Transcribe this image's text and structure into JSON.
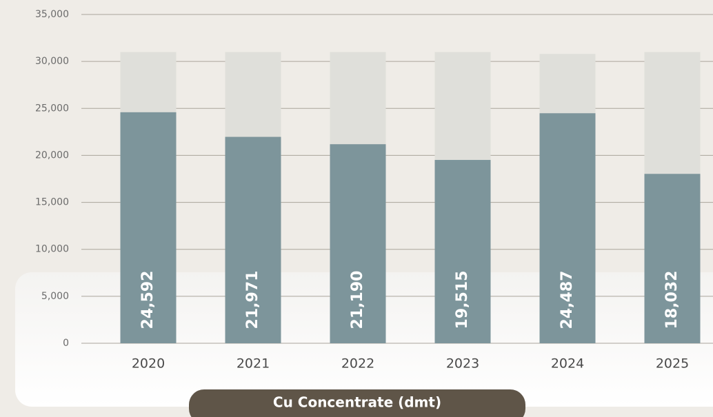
{
  "chart_data": {
    "type": "bar",
    "title": "Cu Concentrate (dmt)",
    "categories": [
      "2020",
      "2021",
      "2022",
      "2023",
      "2024",
      "2025"
    ],
    "values": [
      24592,
      21971,
      21190,
      19515,
      24487,
      18032
    ],
    "value_labels": [
      "24,592",
      "21,971",
      "21,190",
      "19,515",
      "24,487",
      "18,032"
    ],
    "color": "#7d959b",
    "background_values": [
      31000,
      31000,
      31000,
      31000,
      30800,
      31000
    ],
    "background_color": "#dfdfda",
    "ylim": [
      0,
      35000
    ],
    "yticks": [
      0,
      {
        "value": 5000,
        "label": "5,000"
      },
      {
        "value": 10000,
        "label": "10,000"
      },
      {
        "value": 15000,
        "label": "15,000"
      },
      {
        "value": 20000,
        "label": "20,000"
      },
      {
        "value": 25000,
        "label": "25,000"
      },
      {
        "value": 30000,
        "label": "30,000"
      },
      {
        "value": 35000,
        "label": "35,000"
      }
    ],
    "grid": true
  }
}
